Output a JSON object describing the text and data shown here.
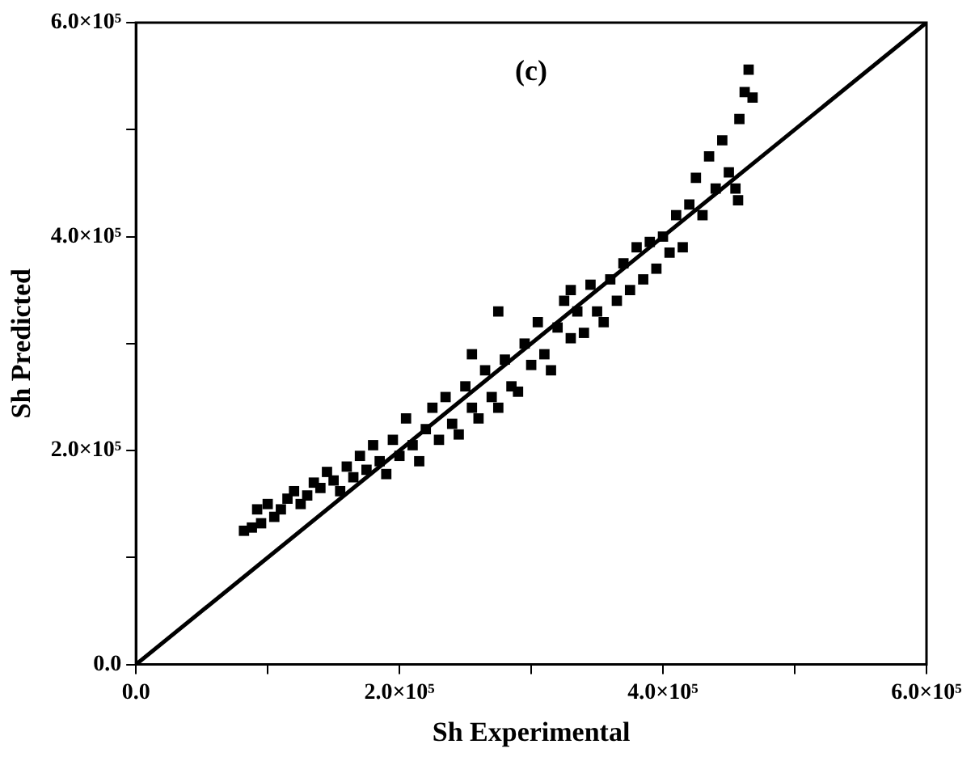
{
  "chart_data": {
    "type": "scatter",
    "xlabel": "Sh Experimental",
    "ylabel": "Sh Predicted",
    "annotations": [
      "(c)"
    ],
    "xlim": [
      0,
      600000
    ],
    "ylim": [
      0,
      600000
    ],
    "xticks": [
      {
        "value": 0,
        "label": "0.0"
      },
      {
        "value": 100000,
        "label": null
      },
      {
        "value": 200000,
        "label": "2.0×10⁵"
      },
      {
        "value": 300000,
        "label": null
      },
      {
        "value": 400000,
        "label": "4.0×10⁵"
      },
      {
        "value": 500000,
        "label": null
      },
      {
        "value": 600000,
        "label": "6.0×10⁵"
      }
    ],
    "yticks": [
      {
        "value": 0,
        "label": "0.0"
      },
      {
        "value": 100000,
        "label": null
      },
      {
        "value": 200000,
        "label": "2.0×10⁵"
      },
      {
        "value": 300000,
        "label": null
      },
      {
        "value": 400000,
        "label": "4.0×10⁵"
      },
      {
        "value": 500000,
        "label": null
      },
      {
        "value": 600000,
        "label": "6.0×10⁵"
      }
    ],
    "grid": false,
    "marker": "square",
    "series": [
      {
        "color": "#000000",
        "x": [
          82000,
          88000,
          95000,
          92000,
          100000,
          105000,
          110000,
          115000,
          120000,
          125000,
          130000,
          135000,
          140000,
          145000,
          150000,
          155000,
          160000,
          165000,
          170000,
          175000,
          180000,
          185000,
          190000,
          195000,
          200000,
          205000,
          210000,
          215000,
          220000,
          225000,
          230000,
          235000,
          240000,
          245000,
          250000,
          255000,
          260000,
          265000,
          270000,
          275000,
          280000,
          285000,
          290000,
          295000,
          300000,
          305000,
          310000,
          315000,
          320000,
          325000,
          330000,
          335000,
          340000,
          345000,
          350000,
          355000,
          360000,
          365000,
          370000,
          375000,
          380000,
          385000,
          390000,
          395000,
          400000,
          405000,
          410000,
          415000,
          420000,
          425000,
          430000,
          435000,
          440000,
          445000,
          450000,
          455000,
          458000,
          462000,
          468000,
          465000,
          275000,
          255000,
          330000,
          457000
        ],
        "values": [
          125000,
          128000,
          132000,
          145000,
          150000,
          138000,
          145000,
          155000,
          162000,
          150000,
          158000,
          170000,
          165000,
          180000,
          172000,
          162000,
          185000,
          175000,
          195000,
          182000,
          205000,
          190000,
          178000,
          210000,
          195000,
          230000,
          205000,
          190000,
          220000,
          240000,
          210000,
          250000,
          225000,
          215000,
          260000,
          240000,
          230000,
          275000,
          250000,
          240000,
          285000,
          260000,
          255000,
          300000,
          280000,
          320000,
          290000,
          275000,
          315000,
          340000,
          305000,
          330000,
          310000,
          355000,
          330000,
          320000,
          360000,
          340000,
          375000,
          350000,
          390000,
          360000,
          395000,
          370000,
          400000,
          385000,
          420000,
          390000,
          430000,
          455000,
          420000,
          475000,
          445000,
          490000,
          460000,
          445000,
          510000,
          535000,
          530000,
          556000,
          330000,
          290000,
          350000,
          434000
        ]
      },
      {
        "type": "line",
        "color": "#000000",
        "marker": "none",
        "x": [
          0,
          600000
        ],
        "values": [
          0,
          600000
        ]
      }
    ]
  }
}
